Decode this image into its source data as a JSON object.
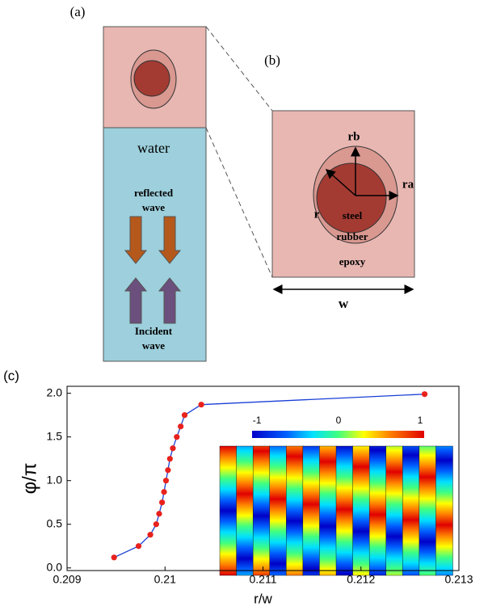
{
  "panel_labels": [
    "(a)",
    "(b)",
    "(c)"
  ],
  "panel_a": {
    "medium": "water",
    "reflected": [
      "reflected",
      "wave"
    ],
    "incident": [
      "Incident",
      "wave"
    ]
  },
  "panel_b": {
    "rb": "rb",
    "ra": "ra",
    "r": "r",
    "steel": "steel",
    "rubber": "rubber",
    "epoxy": "epoxy",
    "w": "w"
  },
  "chart_data": {
    "type": "line",
    "x_label": "r/w",
    "y_label": "φ/π",
    "x": [
      0.20948,
      0.20973,
      0.20985,
      0.20991,
      0.20994,
      0.20997,
      0.20999,
      0.21001,
      0.21003,
      0.21005,
      0.21008,
      0.21012,
      0.21016,
      0.2102,
      0.21037,
      0.21265
    ],
    "series": [
      {
        "color": "#1a3fd6",
        "marker_color": "#e8211c",
        "values": [
          0.12,
          0.25,
          0.38,
          0.5,
          0.62,
          0.75,
          0.87,
          1.0,
          1.12,
          1.25,
          1.37,
          1.5,
          1.62,
          1.75,
          1.87,
          1.99
        ]
      }
    ],
    "xlim": [
      0.209,
      0.213
    ],
    "ylim": [
      -0.03,
      2.08
    ],
    "xticks": [
      0.209,
      0.21,
      0.211,
      0.212,
      0.213
    ],
    "yticks": [
      {
        "value": 0,
        "label": "0.0"
      },
      0.5,
      {
        "value": 1,
        "label": "1.0"
      },
      1.5,
      {
        "value": 2,
        "label": "2.0"
      }
    ],
    "colorbar": {
      "lim": [
        -1.06,
        1.05
      ],
      "ticks": [
        -1,
        0,
        1
      ]
    }
  }
}
